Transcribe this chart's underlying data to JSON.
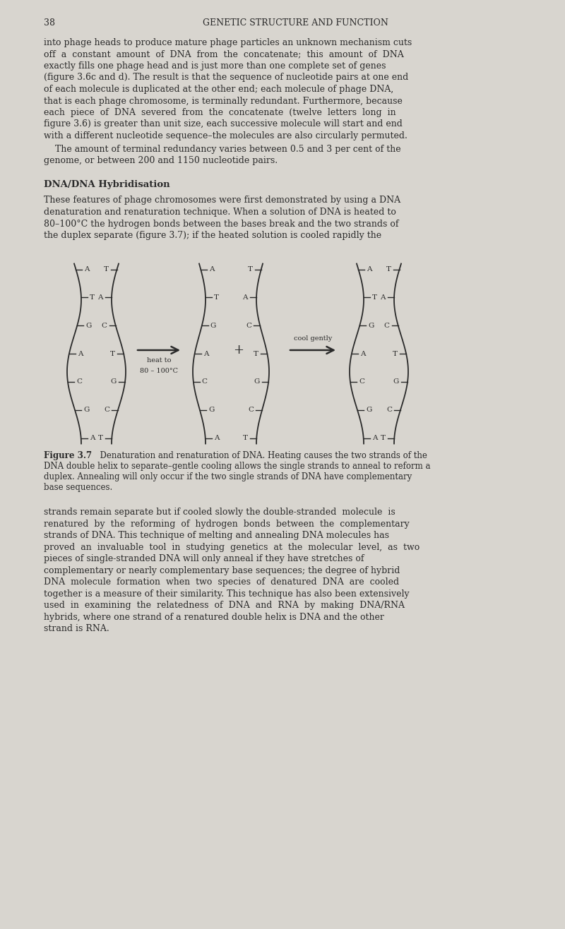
{
  "page_number": "38",
  "header_title": "GENETIC STRUCTURE AND FUNCTION",
  "bg_color": "#d8d5cf",
  "text_color": "#2a2a2a",
  "p1_lines": [
    "into phage heads to produce mature phage particles an unknown mechanism cuts",
    "off  a  constant  amount  of  DNA  from  the  concatenate;  this  amount  of  DNA",
    "exactly fills one phage head and is just more than one complete set of genes",
    "(figure 3.6c and d). The result is that the sequence of nucleotide pairs at one end",
    "of each molecule is duplicated at the other end; each molecule of phage DNA,",
    "that is each phage chromosome, is terminally redundant. Furthermore, because",
    "each  piece  of  DNA  severed  from  the  concatenate  (twelve  letters  long  in",
    "figure 3.6) is greater than unit size, each successive molecule will start and end",
    "with a different nucleotide sequence–the molecules are also circularly permuted."
  ],
  "p1b_lines": [
    "    The amount of terminal redundancy varies between 0.5 and 3 per cent of the",
    "genome, or between 200 and 1150 nucleotide pairs."
  ],
  "section_title": "DNA/DNA Hybridisation",
  "p2_lines": [
    "These features of phage chromosomes were first demonstrated by using a DNA",
    "denaturation and renaturation technique. When a solution of DNA is heated to",
    "80–100°C the hydrogen bonds between the bases break and the two strands of",
    "the duplex separate (figure 3.7); if the heated solution is cooled rapidly the"
  ],
  "dna_duplex_bases": [
    "A T",
    "T A",
    "G C",
    "A T",
    "C G",
    "G C",
    "A T"
  ],
  "strand1_bases": [
    "A",
    "T",
    "G",
    "A",
    "C",
    "G",
    "A"
  ],
  "strand2_bases": [
    "T",
    "A",
    "C",
    "T",
    "G",
    "C",
    "T"
  ],
  "arrow1_label_line1": "heat to",
  "arrow1_label_line2": "80 – 100°C",
  "plus_label": "+",
  "arrow2_label": "cool gently",
  "dna_duplex2_bases": [
    "A T",
    "T A",
    "G C",
    "A T",
    "C G",
    "G C",
    "A T"
  ],
  "cap_bold": "Figure 3.7",
  "cap_rest_line1": "  Denaturation and renaturation of DNA. Heating causes the two strands of the",
  "cap_rest_lines": [
    "DNA double helix to separate–gentle cooling allows the single strands to anneal to reform a",
    "duplex. Annealing will only occur if the two single strands of DNA have complementary",
    "base sequences."
  ],
  "p3_lines": [
    "strands remain separate but if cooled slowly the double-stranded  molecule  is",
    "renatured  by  the  reforming  of  hydrogen  bonds  between  the  complementary",
    "strands of DNA. This technique of melting and annealing DNA molecules has",
    "proved  an  invaluable  tool  in  studying  genetics  at  the  molecular  level,  as  two",
    "pieces of single-stranded DNA will only anneal if they have stretches of",
    "complementary or nearly complementary base sequences; the degree of hybrid",
    "DNA  molecule  formation  when  two  species  of  denatured  DNA  are  cooled",
    "together is a measure of their similarity. This technique has also been extensively",
    "used  in  examining  the  relatedness  of  DNA  and  RNA  by  making  DNA/RNA",
    "hybrids, where one strand of a renatured double helix is DNA and the other",
    "strand is RNA."
  ]
}
